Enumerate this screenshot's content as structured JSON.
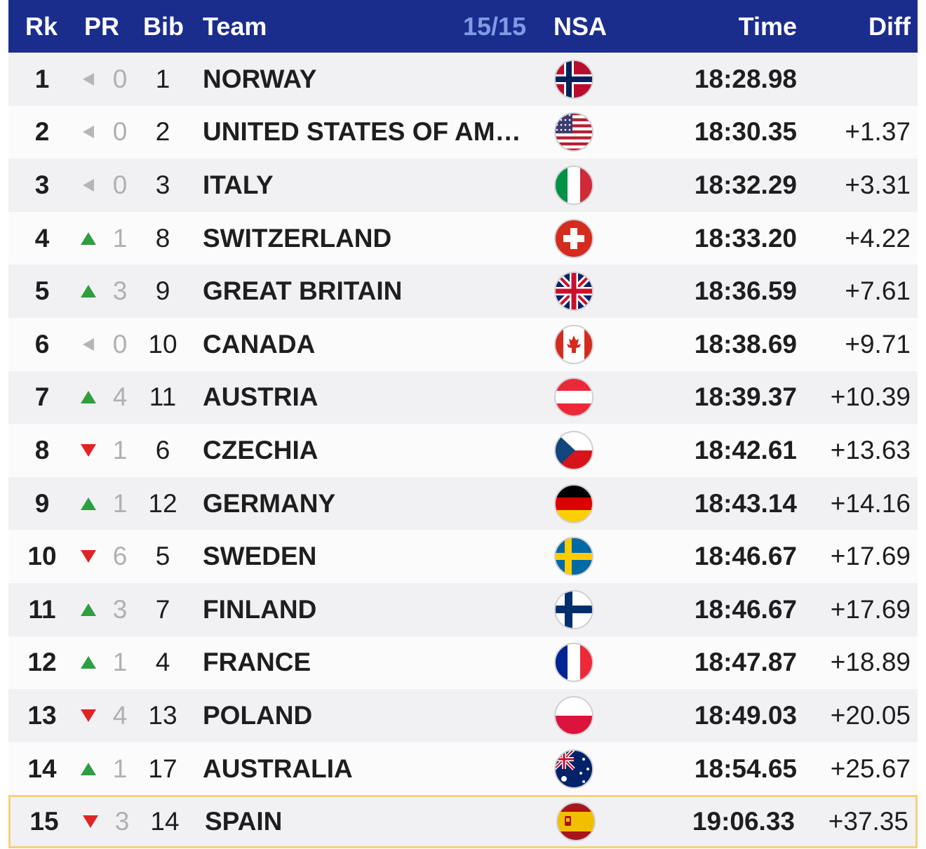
{
  "header": {
    "rk": "Rk",
    "pr": "PR",
    "bib": "Bib",
    "team": "Team",
    "count": "15/15",
    "nsa": "NSA",
    "time": "Time",
    "diff": "Diff"
  },
  "colors": {
    "header_bg": "#1b2d8c",
    "up": "#2e9e3e",
    "down": "#e02424",
    "same": "#b5b5b5",
    "highlight_border": "#f3d27a"
  },
  "rows": [
    {
      "rk": "1",
      "pr_dir": "same",
      "pr": "0",
      "bib": "1",
      "team": "NORWAY",
      "nsa": "norway-flag-icon",
      "time": "18:28.98",
      "diff": ""
    },
    {
      "rk": "2",
      "pr_dir": "same",
      "pr": "0",
      "bib": "2",
      "team": "UNITED STATES OF AM…",
      "nsa": "usa-flag-icon",
      "time": "18:30.35",
      "diff": "+1.37"
    },
    {
      "rk": "3",
      "pr_dir": "same",
      "pr": "0",
      "bib": "3",
      "team": "ITALY",
      "nsa": "italy-flag-icon",
      "time": "18:32.29",
      "diff": "+3.31"
    },
    {
      "rk": "4",
      "pr_dir": "up",
      "pr": "1",
      "bib": "8",
      "team": "SWITZERLAND",
      "nsa": "switzerland-flag-icon",
      "time": "18:33.20",
      "diff": "+4.22"
    },
    {
      "rk": "5",
      "pr_dir": "up",
      "pr": "3",
      "bib": "9",
      "team": "GREAT BRITAIN",
      "nsa": "great-britain-flag-icon",
      "time": "18:36.59",
      "diff": "+7.61"
    },
    {
      "rk": "6",
      "pr_dir": "same",
      "pr": "0",
      "bib": "10",
      "team": "CANADA",
      "nsa": "canada-flag-icon",
      "time": "18:38.69",
      "diff": "+9.71"
    },
    {
      "rk": "7",
      "pr_dir": "up",
      "pr": "4",
      "bib": "11",
      "team": "AUSTRIA",
      "nsa": "austria-flag-icon",
      "time": "18:39.37",
      "diff": "+10.39"
    },
    {
      "rk": "8",
      "pr_dir": "down",
      "pr": "1",
      "bib": "6",
      "team": "CZECHIA",
      "nsa": "czechia-flag-icon",
      "time": "18:42.61",
      "diff": "+13.63"
    },
    {
      "rk": "9",
      "pr_dir": "up",
      "pr": "1",
      "bib": "12",
      "team": "GERMANY",
      "nsa": "germany-flag-icon",
      "time": "18:43.14",
      "diff": "+14.16"
    },
    {
      "rk": "10",
      "pr_dir": "down",
      "pr": "6",
      "bib": "5",
      "team": "SWEDEN",
      "nsa": "sweden-flag-icon",
      "time": "18:46.67",
      "diff": "+17.69"
    },
    {
      "rk": "11",
      "pr_dir": "up",
      "pr": "3",
      "bib": "7",
      "team": "FINLAND",
      "nsa": "finland-flag-icon",
      "time": "18:46.67",
      "diff": "+17.69"
    },
    {
      "rk": "12",
      "pr_dir": "up",
      "pr": "1",
      "bib": "4",
      "team": "FRANCE",
      "nsa": "france-flag-icon",
      "time": "18:47.87",
      "diff": "+18.89"
    },
    {
      "rk": "13",
      "pr_dir": "down",
      "pr": "4",
      "bib": "13",
      "team": "POLAND",
      "nsa": "poland-flag-icon",
      "time": "18:49.03",
      "diff": "+20.05"
    },
    {
      "rk": "14",
      "pr_dir": "up",
      "pr": "1",
      "bib": "17",
      "team": "AUSTRALIA",
      "nsa": "australia-flag-icon",
      "time": "18:54.65",
      "diff": "+25.67"
    },
    {
      "rk": "15",
      "pr_dir": "down",
      "pr": "3",
      "bib": "14",
      "team": "SPAIN",
      "nsa": "spain-flag-icon",
      "time": "19:06.33",
      "diff": "+37.35",
      "highlight": true
    }
  ]
}
